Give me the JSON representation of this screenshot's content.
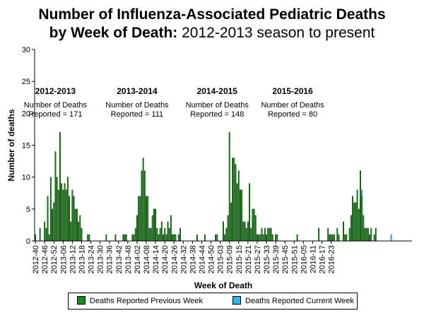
{
  "header": {
    "line1": "Number of Influenza-Associated Pediatric Deaths",
    "line2_bold": "by Week of Death:",
    "line2_rest": " 2012-2013 season to present"
  },
  "colors": {
    "previous": "#1a8a1a",
    "current": "#33b5e5",
    "bar_edge": "#003300"
  },
  "chart_data": {
    "type": "bar",
    "stacked": true,
    "xlabel": "Week of Death",
    "ylabel": "Number of deaths",
    "ylim": [
      0,
      30
    ],
    "yticks": [
      0,
      5,
      10,
      15,
      20,
      25,
      30
    ],
    "grid": false,
    "legend_position": "bottom",
    "xtick_labels": [
      "2012-40",
      "2012-46",
      "2012-52",
      "2013-06",
      "2013-12",
      "2013-18",
      "2013-24",
      "2013-30",
      "2013-36",
      "2013-42",
      "2013-48",
      "2014-02",
      "2014-08",
      "2014-14",
      "2014-20",
      "2014-26",
      "2014-32",
      "2014-38",
      "2014-44",
      "2014-50",
      "2015-03",
      "2015-09",
      "2015-15",
      "2015-21",
      "2015-27",
      "2015-33",
      "2015-39",
      "2015-45",
      "2015-51",
      "2016-05",
      "2016-11",
      "2016-17",
      "2016-23"
    ],
    "series": [
      {
        "name": "Deaths Reported Previous Week",
        "values": [
          1,
          0,
          0,
          2,
          0,
          0,
          3,
          2,
          7,
          1,
          10,
          5,
          6,
          14,
          10,
          8,
          17,
          9,
          8,
          9,
          8,
          10,
          7,
          3,
          8,
          7,
          5,
          5,
          3,
          4,
          2,
          0,
          0,
          0,
          1,
          1,
          0,
          0,
          0,
          0,
          0,
          0,
          0,
          0,
          0,
          0,
          1,
          0,
          0,
          0,
          0,
          0,
          1,
          0,
          0,
          0,
          0,
          1,
          1,
          1,
          0,
          0,
          0,
          1,
          1,
          2,
          4,
          7,
          7,
          11,
          13,
          11,
          7,
          7,
          2,
          2,
          4,
          5,
          5,
          2,
          1,
          2,
          3,
          1,
          2,
          1,
          3,
          2,
          4,
          1,
          1,
          1,
          0,
          1,
          2,
          0,
          0,
          0,
          0,
          0,
          0,
          0,
          0,
          0,
          0,
          1,
          0,
          0,
          0,
          0,
          1,
          0,
          0,
          0,
          0,
          0,
          0,
          1,
          1,
          0,
          0,
          0,
          3,
          1,
          2,
          4,
          17,
          6,
          13,
          13,
          12,
          9,
          11,
          8,
          8,
          3,
          3,
          2,
          3,
          9,
          2,
          5,
          5,
          4,
          1,
          1,
          1,
          2,
          1,
          2,
          1,
          2,
          2,
          2,
          1,
          0,
          1,
          1,
          0,
          0,
          0,
          0,
          0,
          0,
          0,
          0,
          0,
          0,
          0,
          0,
          1,
          0,
          0,
          0,
          0,
          0,
          0,
          0,
          0,
          0,
          0,
          0,
          0,
          0,
          2,
          0,
          0,
          0,
          0,
          0,
          2,
          1,
          1,
          1,
          1,
          0,
          2,
          1,
          0,
          0,
          3,
          1,
          1,
          0,
          2,
          4,
          7,
          6,
          6,
          8,
          5,
          11,
          7,
          4,
          2,
          2,
          2,
          1,
          2,
          0,
          1,
          2,
          0,
          0,
          0,
          0,
          0,
          0,
          0,
          0,
          0,
          0,
          0,
          0,
          0,
          0,
          0,
          0,
          0,
          0,
          0,
          0,
          0,
          0,
          0
        ]
      },
      {
        "name": "Deaths Reported Current Week",
        "values": [
          0,
          0,
          0,
          0,
          0,
          0,
          0,
          0,
          0,
          0,
          0,
          0,
          0,
          0,
          0,
          0,
          0,
          0,
          0,
          0,
          0,
          0,
          0,
          0,
          0,
          0,
          0,
          0,
          0,
          0,
          0,
          0,
          0,
          0,
          0,
          0,
          0,
          0,
          0,
          0,
          0,
          0,
          0,
          0,
          0,
          0,
          0,
          0,
          0,
          0,
          0,
          0,
          0,
          0,
          0,
          0,
          0,
          0,
          0,
          0,
          0,
          0,
          0,
          0,
          0,
          0,
          0,
          0,
          0,
          0,
          0,
          0,
          0,
          0,
          0,
          0,
          0,
          0,
          0,
          0,
          0,
          0,
          0,
          0,
          0,
          0,
          0,
          0,
          0,
          0,
          0,
          0,
          0,
          0,
          0,
          0,
          0,
          0,
          0,
          0,
          0,
          0,
          0,
          0,
          0,
          0,
          0,
          0,
          0,
          0,
          0,
          0,
          0,
          0,
          0,
          0,
          0,
          0,
          0,
          0,
          0,
          0,
          0,
          0,
          0,
          0,
          0,
          0,
          0,
          0,
          0,
          0,
          0,
          0,
          0,
          0,
          0,
          0,
          0,
          0,
          0,
          0,
          0,
          0,
          0,
          0,
          0,
          0,
          0,
          0,
          0,
          0,
          0,
          0,
          0,
          0,
          0,
          0,
          0,
          0,
          0,
          0,
          0,
          0,
          0,
          0,
          0,
          0,
          0,
          0,
          0,
          0,
          0,
          0,
          0,
          0,
          0,
          0,
          0,
          0,
          0,
          0,
          0,
          0,
          0,
          0,
          0,
          0,
          0,
          0,
          0,
          0,
          0,
          0,
          0,
          0,
          0,
          0,
          0,
          0,
          0,
          0,
          0,
          0,
          0,
          0,
          0,
          0,
          0,
          0,
          0,
          0,
          1,
          0,
          0,
          0,
          0,
          0,
          0,
          0,
          0,
          0,
          0,
          0,
          0,
          0,
          0,
          0,
          0,
          0,
          0,
          1,
          0,
          0,
          0,
          0,
          0,
          0,
          0,
          0,
          0,
          0,
          0,
          0,
          0,
          0,
          0,
          0,
          0,
          0,
          0,
          0,
          0,
          0,
          0,
          0,
          0,
          0,
          0,
          0,
          0,
          0
        ]
      }
    ],
    "annotations": [
      {
        "season": "2012-2013",
        "line1": "Number of Deaths",
        "line2": "Reported = 171",
        "week_index": 13
      },
      {
        "season": "2013-2014",
        "line1": "Number of Deaths",
        "line2": "Reported = 111",
        "week_index": 66
      },
      {
        "season": "2014-2015",
        "line1": "Number of Deaths",
        "line2": "Reported = 148",
        "week_index": 118
      },
      {
        "season": "2015-2016",
        "line1": "Number of Deaths",
        "line2": "Reported = 80",
        "week_index": 167
      }
    ]
  }
}
